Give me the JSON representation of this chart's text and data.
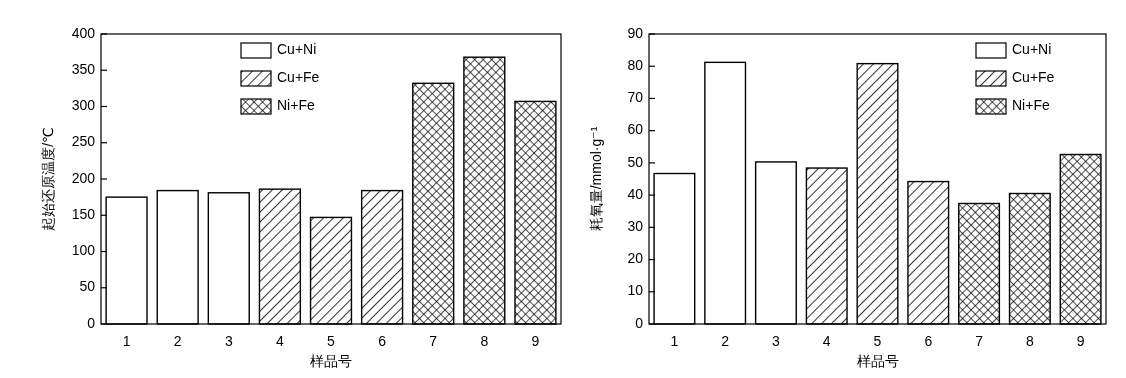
{
  "chart_data": [
    {
      "type": "bar",
      "stacked": true,
      "categories": [
        "1",
        "2",
        "3",
        "4",
        "5",
        "6",
        "7",
        "8",
        "9"
      ],
      "xlabel": "样品号",
      "ylabel": "起始还原温度/℃",
      "ylim": [
        0,
        400
      ],
      "yticks": [
        0,
        50,
        100,
        150,
        200,
        250,
        300,
        350,
        400
      ],
      "legend": "top",
      "grid": false,
      "series": [
        {
          "name": "Cu+Ni",
          "color": "#ffffff",
          "values": [
            175,
            184,
            181,
            null,
            null,
            null,
            null,
            null,
            null
          ]
        },
        {
          "name": "Cu+Fe",
          "color": "#000000",
          "values": [
            null,
            null,
            null,
            186,
            147,
            184,
            null,
            null,
            null
          ]
        },
        {
          "name": "Ni+Fe",
          "color": "#000000",
          "values": [
            null,
            null,
            null,
            null,
            null,
            null,
            332,
            368,
            307
          ]
        }
      ]
    },
    {
      "type": "bar",
      "stacked": true,
      "categories": [
        "1",
        "2",
        "3",
        "4",
        "5",
        "6",
        "7",
        "8",
        "9"
      ],
      "xlabel": "样品号",
      "ylabel": "耗氧量/mmol·g⁻¹",
      "ylim": [
        0,
        90
      ],
      "yticks": [
        0,
        10,
        20,
        30,
        40,
        50,
        60,
        70,
        80,
        90
      ],
      "legend": "top right",
      "grid": false,
      "series": [
        {
          "name": "Cu+Ni",
          "color": "#ffffff",
          "values": [
            46.7,
            81.2,
            50.3,
            null,
            null,
            null,
            null,
            null,
            null
          ]
        },
        {
          "name": "Cu+Fe",
          "color": "#000000",
          "values": [
            null,
            null,
            null,
            48.4,
            80.8,
            44.2,
            null,
            null,
            null
          ]
        },
        {
          "name": "Ni+Fe",
          "color": "#000000",
          "values": [
            null,
            null,
            null,
            null,
            null,
            null,
            37.4,
            40.5,
            52.6
          ]
        }
      ]
    }
  ]
}
